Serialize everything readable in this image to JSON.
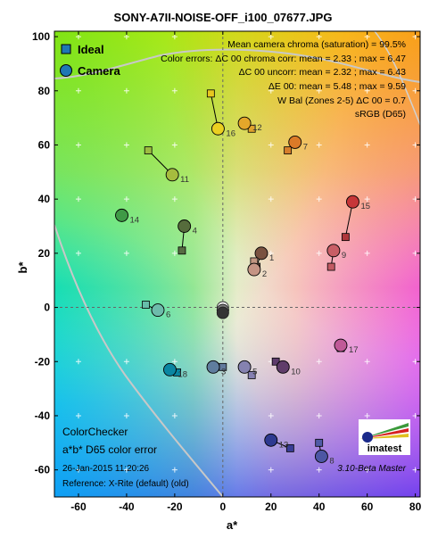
{
  "chart_data": {
    "type": "scatter",
    "title": "SONY-A7II-NOISE-OFF_i100_07677.JPG",
    "xlabel": "a*",
    "ylabel": "b*",
    "xlim": [
      -70,
      82
    ],
    "ylim": [
      -70,
      102
    ],
    "x_ticks": [
      "-60",
      "-40",
      "-20",
      "0",
      "20",
      "40",
      "60",
      "80"
    ],
    "y_ticks": [
      "100",
      "80",
      "60",
      "40",
      "20",
      "0",
      "-20",
      "-40",
      "-60"
    ],
    "grid": true,
    "legend_position": "top-left",
    "legend": [
      {
        "name": "Ideal",
        "marker": "square"
      },
      {
        "name": "Camera",
        "marker": "circle"
      }
    ],
    "stats": [
      "Mean camera chroma (saturation) = 99.5%",
      "Color errors: ΔC 00 chroma corr:  mean = 2.33 ;  max = 6.47",
      "ΔC 00 uncorr:  mean = 2.32 ;  max = 6.43",
      "ΔE 00:  mean = 5.48 ;  max = 9.59",
      "W Bal (Zones 2-5) ΔC 00 = 0.7",
      "sRGB (D65)"
    ],
    "patches": [
      {
        "label": "1",
        "ideal": [
          14,
          15
        ],
        "camera": [
          16,
          20
        ],
        "ideal_color": "#735244",
        "camera_color": "#7a5240"
      },
      {
        "label": "2",
        "ideal": [
          13,
          17
        ],
        "camera": [
          13,
          14
        ],
        "ideal_color": "#c29682",
        "camera_color": "#c59484"
      },
      {
        "label": "3",
        "ideal": [
          0,
          -22
        ],
        "camera": [
          -4,
          -22
        ],
        "ideal_color": "#627a9d",
        "camera_color": "#5f7d9e"
      },
      {
        "label": "4",
        "ideal": [
          -17,
          21
        ],
        "camera": [
          -16,
          30
        ],
        "ideal_color": "#576c43",
        "camera_color": "#566c3c"
      },
      {
        "label": "5",
        "ideal": [
          12,
          -25
        ],
        "camera": [
          9,
          -22
        ],
        "ideal_color": "#8580b1",
        "camera_color": "#8582b0"
      },
      {
        "label": "6",
        "ideal": [
          -32,
          1
        ],
        "camera": [
          -27,
          -1
        ],
        "ideal_color": "#67bdaa",
        "camera_color": "#6dbcab"
      },
      {
        "label": "7",
        "ideal": [
          27,
          58
        ],
        "camera": [
          30,
          61
        ],
        "ideal_color": "#d67e2c",
        "camera_color": "#db7a28"
      },
      {
        "label": "8",
        "ideal": [
          40,
          -50
        ],
        "camera": [
          41,
          -55
        ],
        "ideal_color": "#505ba6",
        "camera_color": "#4c56a4"
      },
      {
        "label": "9",
        "ideal": [
          45,
          15
        ],
        "camera": [
          46,
          21
        ],
        "ideal_color": "#c15a63",
        "camera_color": "#c85e66"
      },
      {
        "label": "10",
        "ideal": [
          22,
          -20
        ],
        "camera": [
          25,
          -22
        ],
        "ideal_color": "#5e3c6c",
        "camera_color": "#603d6a"
      },
      {
        "label": "11",
        "ideal": [
          -31,
          58
        ],
        "camera": [
          -21,
          49
        ],
        "ideal_color": "#9dbc40",
        "camera_color": "#a6bc3e"
      },
      {
        "label": "12",
        "ideal": [
          12,
          66
        ],
        "camera": [
          9,
          68
        ],
        "ideal_color": "#e0a32e",
        "camera_color": "#e4a72a"
      },
      {
        "label": "13",
        "ideal": [
          28,
          -52
        ],
        "camera": [
          20,
          -49
        ],
        "ideal_color": "#383d96",
        "camera_color": "#2e3a90"
      },
      {
        "label": "14",
        "ideal": [
          -42,
          34
        ],
        "camera": [
          -42,
          34
        ],
        "ideal_color": "#469449",
        "camera_color": "#3f9a46"
      },
      {
        "label": "15",
        "ideal": [
          51,
          26
        ],
        "camera": [
          54,
          39
        ],
        "ideal_color": "#af363c",
        "camera_color": "#c63638"
      },
      {
        "label": "16",
        "ideal": [
          -5,
          79
        ],
        "camera": [
          -2,
          66
        ],
        "ideal_color": "#e7c71f",
        "camera_color": "#ebd021"
      },
      {
        "label": "17",
        "ideal": [
          49,
          -15
        ],
        "camera": [
          49,
          -14
        ],
        "ideal_color": "#bb5695",
        "camera_color": "#c05a98"
      },
      {
        "label": "18",
        "ideal": [
          -19,
          -24
        ],
        "camera": [
          -22,
          -23
        ],
        "ideal_color": "#0885a1",
        "camera_color": "#0a86a2"
      }
    ],
    "neutral_patches": [
      {
        "camera": [
          0,
          0
        ],
        "color": "#f3f3f2"
      },
      {
        "camera": [
          0,
          -1
        ],
        "color": "#c8c8c8"
      },
      {
        "camera": [
          0,
          -1
        ],
        "color": "#a0a0a0"
      },
      {
        "camera": [
          0,
          -1
        ],
        "color": "#7a7a79"
      },
      {
        "camera": [
          0,
          -2
        ],
        "color": "#555555"
      },
      {
        "camera": [
          0,
          -2
        ],
        "color": "#343434"
      }
    ]
  },
  "labels": {
    "corner_title": "ColorChecker",
    "corner_subtitle": "a*b* D65 color error",
    "date": "26-Jan-2015 11:20:26",
    "reference": "Reference: X-Rite (default) (old)",
    "version": "3.10-Beta  Master",
    "logo_text": "imatest"
  }
}
